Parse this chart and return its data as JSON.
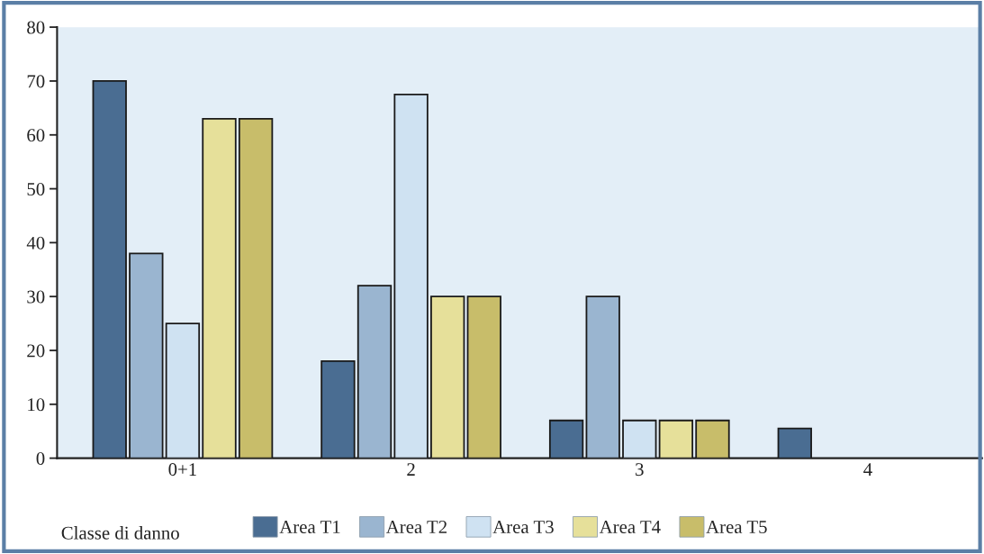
{
  "chart_data": {
    "type": "bar",
    "xlabel": "Classe di danno",
    "categories": [
      "0+1",
      "2",
      "3",
      "4"
    ],
    "series": [
      {
        "name": "Area T1",
        "color": "#4a6d92",
        "values": [
          70,
          18,
          7,
          5.5
        ]
      },
      {
        "name": "Area T2",
        "color": "#9ab5d0",
        "values": [
          38,
          32,
          30,
          null
        ]
      },
      {
        "name": "Area T3",
        "color": "#cfe2f2",
        "values": [
          25,
          67.5,
          7,
          null
        ]
      },
      {
        "name": "Area T4",
        "color": "#e6e09a",
        "values": [
          63,
          30,
          7,
          null
        ]
      },
      {
        "name": "Area T5",
        "color": "#c8bd6a",
        "values": [
          63,
          30,
          7,
          null
        ]
      }
    ],
    "ylim": [
      0,
      80
    ],
    "yticks": [
      0,
      10,
      20,
      30,
      40,
      50,
      60,
      70,
      80
    ],
    "grid": false,
    "legend": "bottom"
  }
}
